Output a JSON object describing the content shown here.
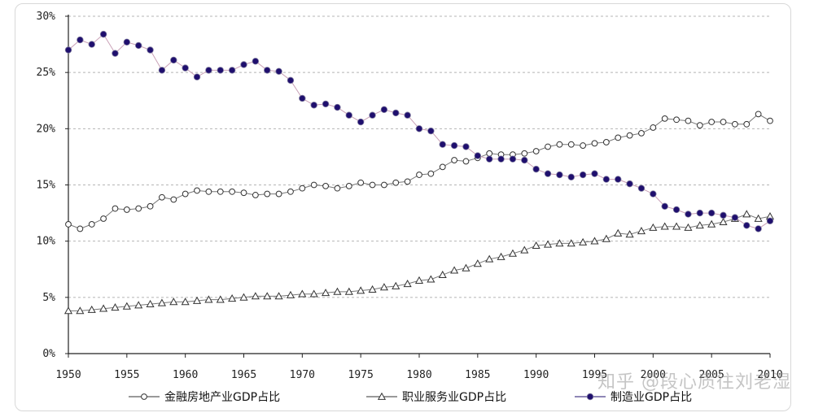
{
  "chart_data": {
    "type": "line",
    "xlim": [
      1950,
      2010
    ],
    "ylim": [
      0,
      30
    ],
    "y_ticks": [
      "0%",
      "5%",
      "10%",
      "15%",
      "20%",
      "25%",
      "30%"
    ],
    "x_ticks": [
      "1950",
      "1955",
      "1960",
      "1965",
      "1970",
      "1975",
      "1980",
      "1985",
      "1990",
      "1995",
      "2000",
      "2005",
      "2010"
    ],
    "grid": "horizontal dashed",
    "legend_position": "bottom",
    "x": [
      1950,
      1951,
      1952,
      1953,
      1954,
      1955,
      1956,
      1957,
      1958,
      1959,
      1960,
      1961,
      1962,
      1963,
      1964,
      1965,
      1966,
      1967,
      1968,
      1969,
      1970,
      1971,
      1972,
      1973,
      1974,
      1975,
      1976,
      1977,
      1978,
      1979,
      1980,
      1981,
      1982,
      1983,
      1984,
      1985,
      1986,
      1987,
      1988,
      1989,
      1990,
      1991,
      1992,
      1993,
      1994,
      1995,
      1996,
      1997,
      1998,
      1999,
      2000,
      2001,
      2002,
      2003,
      2004,
      2005,
      2006,
      2007,
      2008,
      2009,
      2010
    ],
    "series": [
      {
        "name": "金融房地产业GDP占比",
        "marker": "circle-open",
        "color": "#333333",
        "values": [
          11.5,
          11.1,
          11.5,
          12.0,
          12.9,
          12.8,
          12.9,
          13.1,
          13.9,
          13.7,
          14.2,
          14.5,
          14.4,
          14.4,
          14.4,
          14.3,
          14.1,
          14.2,
          14.2,
          14.4,
          14.7,
          15.0,
          14.9,
          14.7,
          14.9,
          15.2,
          15.0,
          15.0,
          15.2,
          15.3,
          15.9,
          16.0,
          16.6,
          17.2,
          17.1,
          17.4,
          17.8,
          17.7,
          17.7,
          17.8,
          18.0,
          18.4,
          18.6,
          18.6,
          18.5,
          18.7,
          18.8,
          19.2,
          19.4,
          19.6,
          20.1,
          20.9,
          20.8,
          20.7,
          20.3,
          20.6,
          20.6,
          20.4,
          20.4,
          21.3,
          20.7
        ]
      },
      {
        "name": "职业服务业GDP占比",
        "marker": "triangle-open",
        "color": "#333333",
        "values": [
          3.8,
          3.8,
          3.9,
          4.0,
          4.1,
          4.2,
          4.3,
          4.4,
          4.5,
          4.6,
          4.6,
          4.7,
          4.8,
          4.8,
          4.9,
          5.0,
          5.1,
          5.1,
          5.1,
          5.2,
          5.3,
          5.3,
          5.4,
          5.5,
          5.5,
          5.6,
          5.7,
          5.9,
          6.0,
          6.2,
          6.5,
          6.6,
          7.0,
          7.4,
          7.6,
          8.0,
          8.4,
          8.6,
          8.9,
          9.2,
          9.6,
          9.7,
          9.8,
          9.8,
          9.9,
          10.0,
          10.2,
          10.7,
          10.6,
          10.9,
          11.2,
          11.3,
          11.3,
          11.2,
          11.4,
          11.5,
          11.7,
          12.0,
          12.4,
          12.0,
          12.2
        ]
      },
      {
        "name": "制造业GDP占比",
        "marker": "circle-filled",
        "color": "#1f0f6e",
        "values": [
          27.0,
          27.9,
          27.5,
          28.4,
          26.7,
          27.7,
          27.4,
          27.0,
          25.2,
          26.1,
          25.4,
          24.6,
          25.2,
          25.2,
          25.2,
          25.7,
          26.0,
          25.2,
          25.1,
          24.3,
          22.7,
          22.1,
          22.2,
          21.9,
          21.2,
          20.6,
          21.2,
          21.7,
          21.4,
          21.2,
          20.0,
          19.8,
          18.6,
          18.5,
          18.4,
          17.6,
          17.3,
          17.3,
          17.3,
          17.2,
          16.4,
          16.0,
          15.9,
          15.7,
          15.9,
          16.0,
          15.5,
          15.5,
          15.1,
          14.7,
          14.2,
          13.1,
          12.8,
          12.4,
          12.5,
          12.5,
          12.3,
          12.1,
          11.4,
          11.1,
          11.8
        ]
      }
    ]
  },
  "watermark": "知乎 @段心质往刘老湿"
}
